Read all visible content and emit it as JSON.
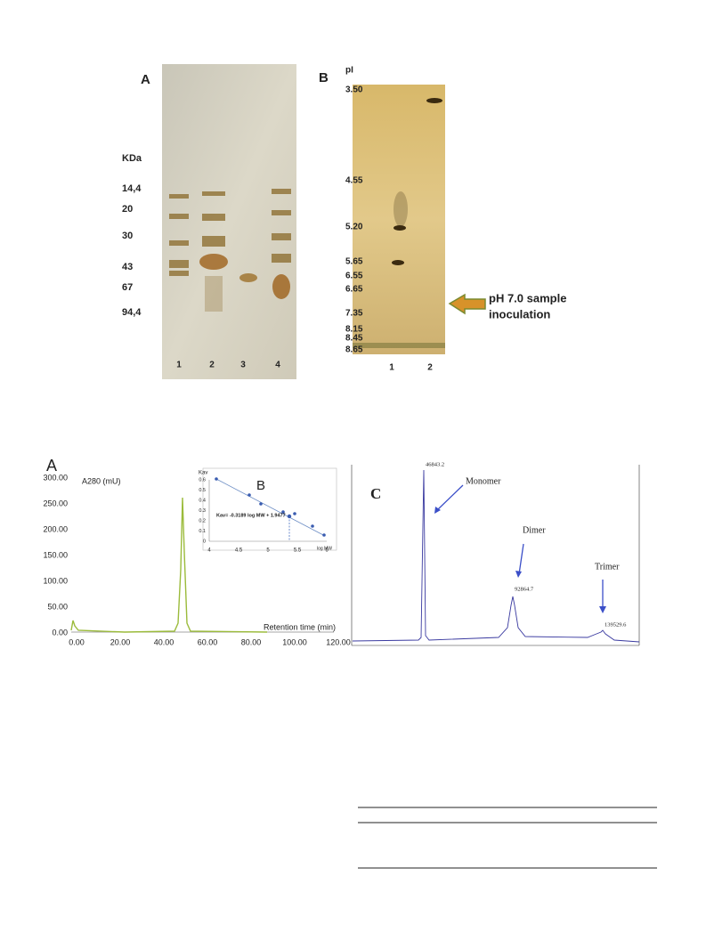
{
  "gel_a": {
    "label": "A",
    "unit": "KDa",
    "markers": [
      "14,4",
      "20",
      "30",
      "43",
      "67",
      "94,4"
    ],
    "lanes": [
      "1",
      "2",
      "3",
      "4"
    ]
  },
  "gel_b": {
    "label": "B",
    "axis_label": "pI",
    "markers": [
      "3.50",
      "4.55",
      "5.20",
      "5.65",
      "6.55",
      "6.65",
      "7.35",
      "8.15",
      "8.45",
      "8.65"
    ],
    "lanes": [
      "1",
      "2"
    ],
    "annotation": [
      "pH 7.0 sample",
      "inoculation"
    ]
  },
  "chromatogram": {
    "label": "A",
    "y_label": "A280 (mU)",
    "x_label": "Retention time (min)",
    "yticks": [
      "300.00",
      "250.00",
      "200.00",
      "150.00",
      "100.00",
      "50.00",
      "0.00"
    ],
    "xticks": [
      "0.00",
      "20.00",
      "40.00",
      "60.00",
      "80.00",
      "100.00",
      "120.00"
    ]
  },
  "inset": {
    "label": "B",
    "y_label": "Kav",
    "x_label": "log MW",
    "yticks": [
      "0.6",
      "0.5",
      "0.4",
      "0.3",
      "0.2",
      "0.1",
      "0"
    ],
    "xticks": [
      "4",
      "4.5",
      "5",
      "5.5",
      "6"
    ],
    "equation": "Kav= -0.3189 log MW + 1.9477"
  },
  "mass_spec": {
    "label": "C",
    "peaks": [
      {
        "name": "Monomer",
        "value": "46843.2"
      },
      {
        "name": "Dimer",
        "value": "92864.7"
      },
      {
        "name": "Trimer",
        "value": "139529.6"
      }
    ]
  }
}
